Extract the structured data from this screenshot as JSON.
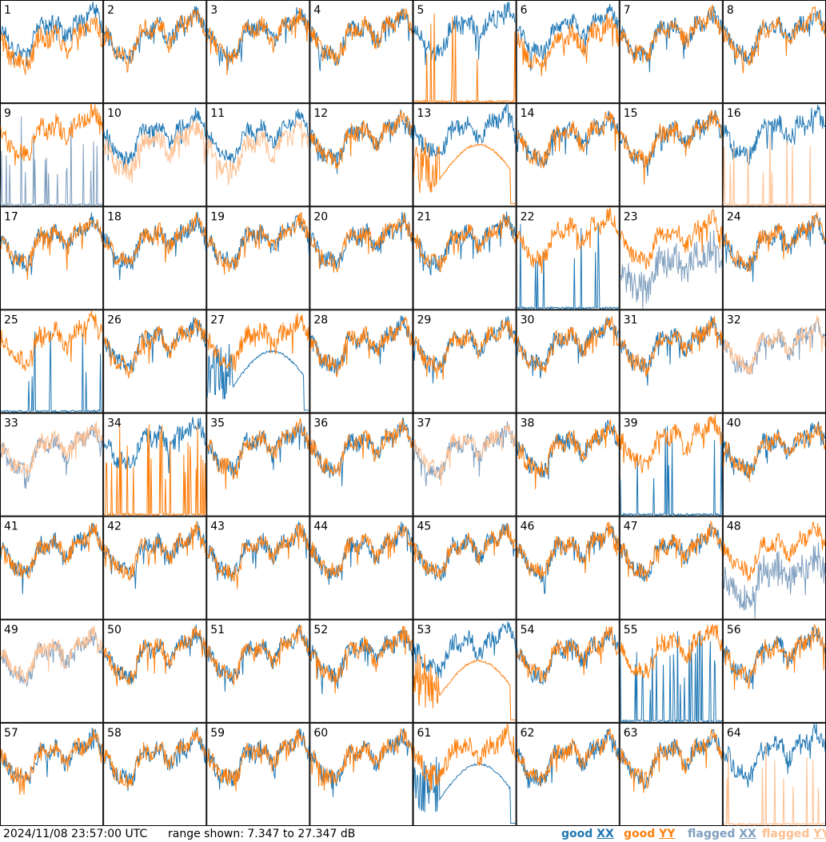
{
  "chart_data": {
    "type": "line",
    "layout": "small-multiples 8x8",
    "panels": [
      "1",
      "2",
      "3",
      "4",
      "5",
      "6",
      "7",
      "8",
      "9",
      "10",
      "11",
      "12",
      "13",
      "14",
      "15",
      "16",
      "17",
      "18",
      "19",
      "20",
      "21",
      "22",
      "23",
      "24",
      "25",
      "26",
      "27",
      "28",
      "29",
      "30",
      "31",
      "32",
      "33",
      "34",
      "35",
      "36",
      "37",
      "38",
      "39",
      "40",
      "41",
      "42",
      "43",
      "44",
      "45",
      "46",
      "47",
      "48",
      "49",
      "50",
      "51",
      "52",
      "53",
      "54",
      "55",
      "56",
      "57",
      "58",
      "59",
      "60",
      "61",
      "62",
      "63",
      "64"
    ],
    "ylim": [
      7.347,
      27.347
    ],
    "yunit": "dB",
    "legend": [
      {
        "id": "goodXX",
        "word": "good",
        "pol": "XX",
        "color": "#1f77b4"
      },
      {
        "id": "goodYY",
        "word": "good",
        "pol": "YY",
        "color": "#ff7f0e"
      },
      {
        "id": "flaggedXX",
        "word": "flagged",
        "pol": "XX",
        "color": "#7f9fbf"
      },
      {
        "id": "flaggedYY",
        "word": "flagged",
        "pol": "YY",
        "color": "#ffbf8f"
      }
    ],
    "legend_placement": "bottom-right",
    "panel_styles": {
      "1": "dip",
      "5": "spikesY",
      "6": "dip",
      "9": "spikesFX",
      "10": "faintY",
      "11": "faintY",
      "13": "dropY",
      "16": "spikesFY",
      "22": "spikesX",
      "23": "flagXY",
      "25": "spikesX",
      "27": "dropX",
      "32": "flagBoth",
      "33": "flagBoth",
      "34": "spikesYdense",
      "37": "flagBoth",
      "39": "spikesX",
      "48": "flagXY",
      "49": "flagBoth",
      "53": "dropY",
      "55": "spikesXdense",
      "61": "dropX",
      "64": "spikesFY"
    }
  },
  "footer": {
    "timestamp": "2024/11/08 23:57:00 UTC",
    "range_text": "range shown: 7.347 to 27.347 dB"
  }
}
